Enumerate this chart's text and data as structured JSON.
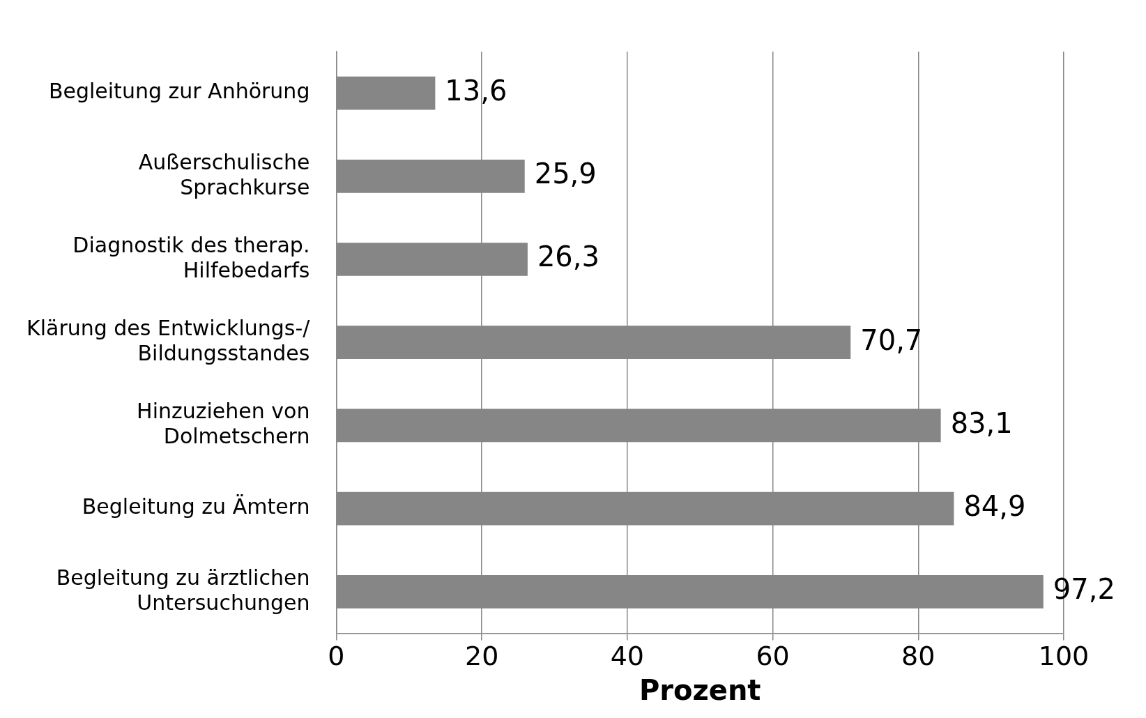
{
  "chart_data": {
    "type": "bar",
    "orientation": "horizontal",
    "xlabel": "Prozent",
    "categories": [
      "Begleitung zur Anhörung",
      "Außerschulische Sprachkurse",
      "Diagnostik des therap. Hilfebedarfs",
      "Klärung des Entwicklungs-/ Bildungsstandes",
      "Hinzuziehen von Dolmetschern",
      "Begleitung zu Ämtern",
      "Begleitung zu ärztlichen Untersuchungen"
    ],
    "values": [
      13.6,
      25.9,
      26.3,
      70.7,
      83.1,
      84.9,
      97.2
    ],
    "value_labels": [
      "13,6",
      "25,9",
      "26,3",
      "70,7",
      "83,1",
      "84,9",
      "97,2"
    ],
    "color": "#868686",
    "xlim": [
      0,
      100
    ],
    "xticks": [
      0,
      20,
      40,
      60,
      80,
      100
    ],
    "grid": "x",
    "legend": false
  }
}
